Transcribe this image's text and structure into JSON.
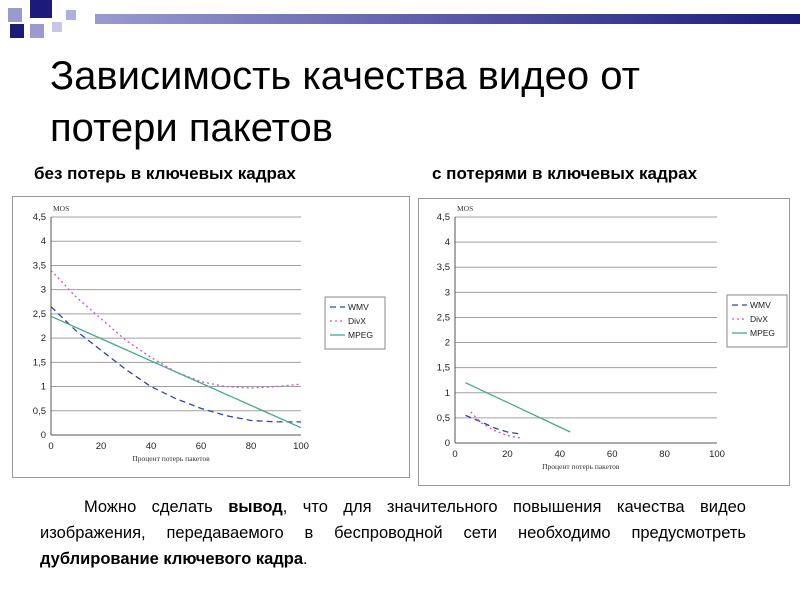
{
  "slide": {
    "title": "Зависимость качества видео от потери пакетов",
    "left_caption": "без потерь в ключевых кадрах",
    "right_caption": "с потерями в ключевых кадрах",
    "conclusion": {
      "p1": "Можно сделать ",
      "b1": "вывод",
      "p2": ", что для значительного повышения качества видео изображения, передаваемого в беспроводной сети необходимо предусмотреть ",
      "b2": "дублирование ключевого кадра",
      "p3": "."
    },
    "accent_color": "#1b1b7a"
  },
  "chart_data": [
    {
      "type": "line",
      "ylabel": "MOS",
      "xlabel": "Процент потерь пакетов",
      "xlim": [
        0,
        100
      ],
      "ylim": [
        0,
        4.5
      ],
      "xticks": [
        "0",
        "20",
        "40",
        "60",
        "80",
        "100"
      ],
      "yticks": [
        "0",
        "0,5",
        "1",
        "1,5",
        "2",
        "2,5",
        "3",
        "3,5",
        "4",
        "4,5"
      ],
      "grid": true,
      "legend_position": "right",
      "series": [
        {
          "name": "WMV",
          "color": "#3344aa",
          "dash": "6,4",
          "x": [
            0,
            10,
            20,
            30,
            40,
            50,
            60,
            70,
            80,
            90,
            100
          ],
          "y": [
            2.65,
            2.15,
            1.75,
            1.35,
            1.0,
            0.75,
            0.55,
            0.4,
            0.3,
            0.27,
            0.27
          ]
        },
        {
          "name": "DivX",
          "color": "#cc55cc",
          "dash": "2,3",
          "x": [
            0,
            10,
            20,
            30,
            40,
            50,
            60,
            70,
            80,
            90,
            100
          ],
          "y": [
            3.4,
            2.85,
            2.4,
            1.95,
            1.6,
            1.3,
            1.1,
            1.0,
            0.97,
            1.0,
            1.05
          ]
        },
        {
          "name": "MPEG",
          "color": "#44aa88",
          "dash": "",
          "x": [
            0,
            100
          ],
          "y": [
            2.45,
            0.15
          ]
        }
      ]
    },
    {
      "type": "line",
      "ylabel": "MOS",
      "xlabel": "Процент потерь пакетов",
      "xlim": [
        0,
        100
      ],
      "ylim": [
        0,
        4.5
      ],
      "xticks": [
        "0",
        "20",
        "40",
        "60",
        "80",
        "100"
      ],
      "yticks": [
        "0",
        "0,5",
        "1",
        "1,5",
        "2",
        "2,5",
        "3",
        "3,5",
        "4",
        "4,5"
      ],
      "grid": true,
      "legend_position": "right",
      "series": [
        {
          "name": "WMV",
          "color": "#3344aa",
          "dash": "6,4",
          "x": [
            4,
            10,
            15,
            20,
            25
          ],
          "y": [
            0.55,
            0.42,
            0.3,
            0.22,
            0.18
          ]
        },
        {
          "name": "DivX",
          "color": "#cc55cc",
          "dash": "2,3",
          "x": [
            6,
            10,
            15,
            20,
            25
          ],
          "y": [
            0.62,
            0.4,
            0.25,
            0.15,
            0.1
          ]
        },
        {
          "name": "MPEG",
          "color": "#44aa88",
          "dash": "",
          "x": [
            4,
            44
          ],
          "y": [
            1.2,
            0.22
          ]
        }
      ]
    }
  ]
}
